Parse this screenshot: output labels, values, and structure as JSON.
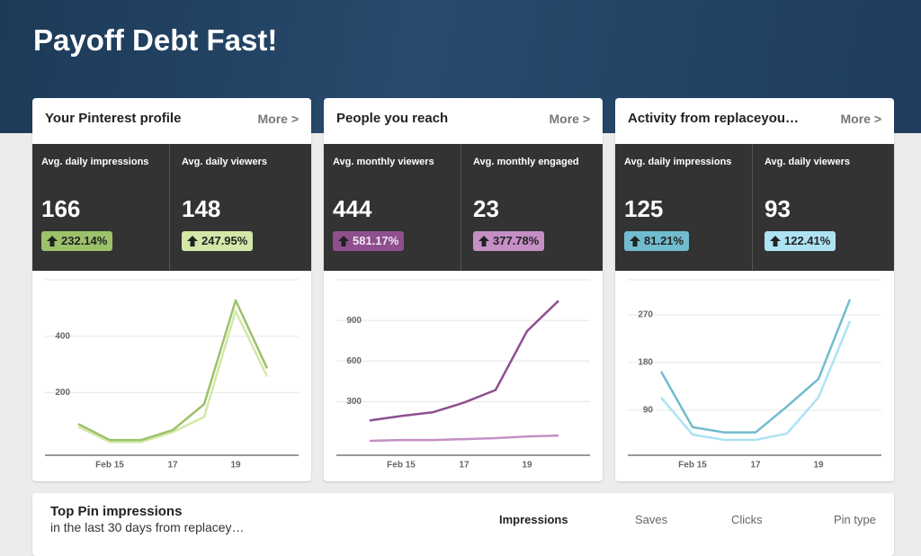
{
  "header": {
    "title": "Payoff Debt Fast!"
  },
  "cards": [
    {
      "title": "Your Pinterest profile",
      "more": "More >",
      "stats": [
        {
          "label": "Avg. daily impressions",
          "value": 166,
          "change": "232.14%"
        },
        {
          "label": "Avg. daily viewers",
          "value": 148,
          "change": "247.95%"
        }
      ]
    },
    {
      "title": "People you reach",
      "more": "More >",
      "stats": [
        {
          "label": "Avg. monthly viewers",
          "value": 444,
          "change": "581.17%"
        },
        {
          "label": "Avg. monthly engaged",
          "value": 23,
          "change": "377.78%"
        }
      ]
    },
    {
      "title": "Activity from replaceyou…",
      "more": "More >",
      "stats": [
        {
          "label": "Avg. daily impressions",
          "value": 125,
          "change": "81.21%"
        },
        {
          "label": "Avg. daily viewers",
          "value": 93,
          "change": "122.41%"
        }
      ]
    }
  ],
  "chart_data": [
    {
      "type": "line",
      "categories": [
        null,
        "Feb 15",
        null,
        "17",
        null,
        "19",
        null
      ],
      "series": [
        {
          "color": "#9cc26b",
          "values": [
            89,
            32,
            32,
            67,
            159,
            527,
            286
          ]
        },
        {
          "color": "#d3e8a8",
          "values": [
            79,
            25,
            25,
            60,
            114,
            489,
            257
          ]
        }
      ],
      "ylim": [
        -22,
        600
      ],
      "yticks": [
        200,
        400
      ],
      "grid": true
    },
    {
      "type": "line",
      "categories": [
        null,
        "Feb 15",
        null,
        "17",
        null,
        "19",
        null
      ],
      "series": [
        {
          "color": "#8e4f8e",
          "values": [
            161,
            194,
            221,
            293,
            386,
            821,
            1045
          ]
        },
        {
          "color": "#c58fc5",
          "values": [
            10,
            16,
            16,
            23,
            30,
            43,
            49
          ]
        }
      ],
      "ylim": [
        -96,
        1200
      ],
      "yticks": [
        300,
        600,
        900
      ],
      "grid": true
    },
    {
      "type": "line",
      "categories": [
        null,
        "Feb 15",
        null,
        "17",
        null,
        "19",
        null
      ],
      "series": [
        {
          "color": "#72bccf",
          "values": [
            163,
            58,
            48,
            48,
            97,
            149,
            299
          ]
        },
        {
          "color": "#ade3f3",
          "values": [
            114,
            44,
            34,
            34,
            46,
            114,
            258
          ]
        }
      ],
      "ylim": [
        5,
        336
      ],
      "yticks": [
        90,
        180,
        270
      ],
      "grid": true
    }
  ],
  "bottom": {
    "title": "Top Pin impressions",
    "subtitle": "in the last 30 days from replacey…",
    "columns": [
      "Impressions",
      "Saves",
      "Clicks",
      "Pin type"
    ]
  }
}
